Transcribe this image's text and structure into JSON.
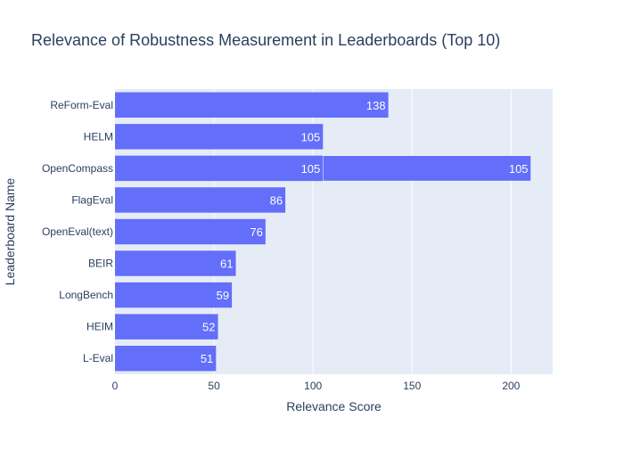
{
  "chart_data": {
    "type": "bar",
    "orientation": "horizontal",
    "title": "Relevance of Robustness Measurement in Leaderboards (Top 10)",
    "xlabel": "Relevance Score",
    "ylabel": "Leaderboard Name",
    "xlim": [
      0,
      221
    ],
    "xticks": [
      0,
      50,
      100,
      150,
      200
    ],
    "grid": true,
    "legend": "none",
    "bar_color": "#636efa",
    "plot_background": "#e5ecf6",
    "categories": [
      "ReForm-Eval",
      "HELM",
      "OpenCompass",
      "FlagEval",
      "OpenEval(text)",
      "BEIR",
      "LongBench",
      "HEIM",
      "L-Eval"
    ],
    "bars": [
      {
        "category": "ReForm-Eval",
        "segments": [
          138
        ]
      },
      {
        "category": "HELM",
        "segments": [
          105
        ]
      },
      {
        "category": "OpenCompass",
        "segments": [
          105,
          105
        ]
      },
      {
        "category": "FlagEval",
        "segments": [
          86
        ]
      },
      {
        "category": "OpenEval(text)",
        "segments": [
          76
        ]
      },
      {
        "category": "BEIR",
        "segments": [
          61
        ]
      },
      {
        "category": "LongBench",
        "segments": [
          59
        ]
      },
      {
        "category": "HEIM",
        "segments": [
          52
        ]
      },
      {
        "category": "L-Eval",
        "segments": [
          51
        ]
      }
    ]
  }
}
